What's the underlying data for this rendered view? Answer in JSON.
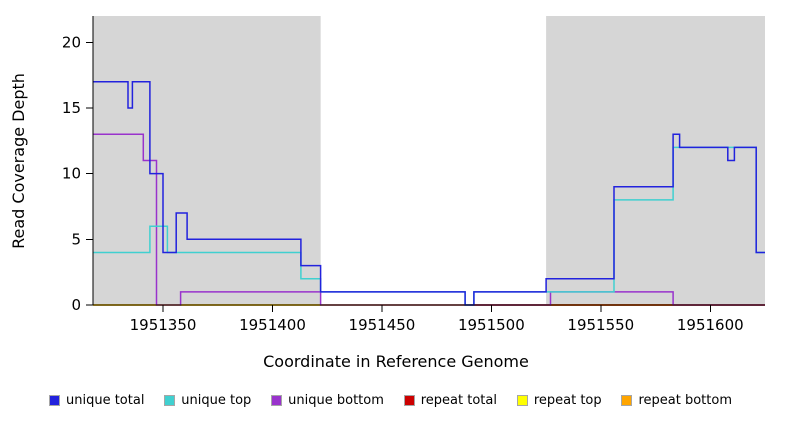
{
  "chart_data": {
    "type": "line",
    "title": "",
    "xlabel": "Coordinate in Reference Genome",
    "ylabel": "Read Coverage Depth",
    "xlim": [
      1951318,
      1951625
    ],
    "ylim": [
      0,
      22
    ],
    "xticks": [
      1951350,
      1951400,
      1951450,
      1951500,
      1951550,
      1951600
    ],
    "yticks": [
      0,
      5,
      10,
      15,
      20
    ],
    "grid": false,
    "legend_position": "bottom",
    "shade_color": "#d6d6d6",
    "shaded_regions": [
      {
        "x0": 1951318,
        "x1": 1951422
      },
      {
        "x0": 1951525,
        "x1": 1951625
      }
    ],
    "series": [
      {
        "name": "repeat top",
        "color": "#ffff00",
        "points": [
          [
            1951318,
            0
          ],
          [
            1951625,
            0
          ]
        ]
      },
      {
        "name": "repeat bottom",
        "color": "#ffa500",
        "points": [
          [
            1951318,
            0
          ],
          [
            1951625,
            0
          ]
        ]
      },
      {
        "name": "repeat total",
        "color": "#cc0000",
        "points": [
          [
            1951490,
            0
          ],
          [
            1951625,
            0
          ]
        ]
      },
      {
        "name": "unique bottom",
        "color": "#9933cc",
        "points": [
          [
            1951318,
            13
          ],
          [
            1951341,
            13
          ],
          [
            1951341,
            11
          ],
          [
            1951347,
            11
          ],
          [
            1951347,
            0
          ],
          [
            1951358,
            0
          ],
          [
            1951358,
            1
          ],
          [
            1951422,
            1
          ],
          [
            1951422,
            0
          ],
          [
            1951527,
            0
          ],
          [
            1951527,
            1
          ],
          [
            1951583,
            1
          ],
          [
            1951583,
            0
          ],
          [
            1951625,
            0
          ]
        ]
      },
      {
        "name": "unique top",
        "color": "#40d0d0",
        "points": [
          [
            1951318,
            4
          ],
          [
            1951344,
            4
          ],
          [
            1951344,
            6
          ],
          [
            1951352,
            6
          ],
          [
            1951352,
            4
          ],
          [
            1951413,
            4
          ],
          [
            1951413,
            2
          ],
          [
            1951422,
            2
          ],
          [
            1951422,
            1
          ],
          [
            1951488,
            1
          ],
          [
            1951488,
            0
          ],
          [
            1951492,
            0
          ],
          [
            1951492,
            1
          ],
          [
            1951556,
            1
          ],
          [
            1951556,
            8
          ],
          [
            1951583,
            8
          ],
          [
            1951583,
            12
          ],
          [
            1951621,
            12
          ],
          [
            1951621,
            4
          ],
          [
            1951625,
            4
          ]
        ]
      },
      {
        "name": "unique total",
        "color": "#2222dd",
        "points": [
          [
            1951318,
            17
          ],
          [
            1951334,
            17
          ],
          [
            1951334,
            15
          ],
          [
            1951336,
            15
          ],
          [
            1951336,
            17
          ],
          [
            1951344,
            17
          ],
          [
            1951344,
            10
          ],
          [
            1951350,
            10
          ],
          [
            1951350,
            4
          ],
          [
            1951356,
            4
          ],
          [
            1951356,
            7
          ],
          [
            1951361,
            7
          ],
          [
            1951361,
            5
          ],
          [
            1951413,
            5
          ],
          [
            1951413,
            3
          ],
          [
            1951422,
            3
          ],
          [
            1951422,
            1
          ],
          [
            1951488,
            1
          ],
          [
            1951488,
            0
          ],
          [
            1951492,
            0
          ],
          [
            1951492,
            1
          ],
          [
            1951525,
            1
          ],
          [
            1951525,
            2
          ],
          [
            1951556,
            2
          ],
          [
            1951556,
            9
          ],
          [
            1951583,
            9
          ],
          [
            1951583,
            13
          ],
          [
            1951586,
            13
          ],
          [
            1951586,
            12
          ],
          [
            1951608,
            12
          ],
          [
            1951608,
            11
          ],
          [
            1951611,
            11
          ],
          [
            1951611,
            12
          ],
          [
            1951621,
            12
          ],
          [
            1951621,
            4
          ],
          [
            1951625,
            4
          ]
        ]
      }
    ],
    "legend": [
      {
        "label": "unique total",
        "color": "#2222dd"
      },
      {
        "label": "unique top",
        "color": "#40d0d0"
      },
      {
        "label": "unique bottom",
        "color": "#9933cc"
      },
      {
        "label": "repeat total",
        "color": "#cc0000"
      },
      {
        "label": "repeat top",
        "color": "#ffff00"
      },
      {
        "label": "repeat bottom",
        "color": "#ffa500"
      }
    ]
  }
}
